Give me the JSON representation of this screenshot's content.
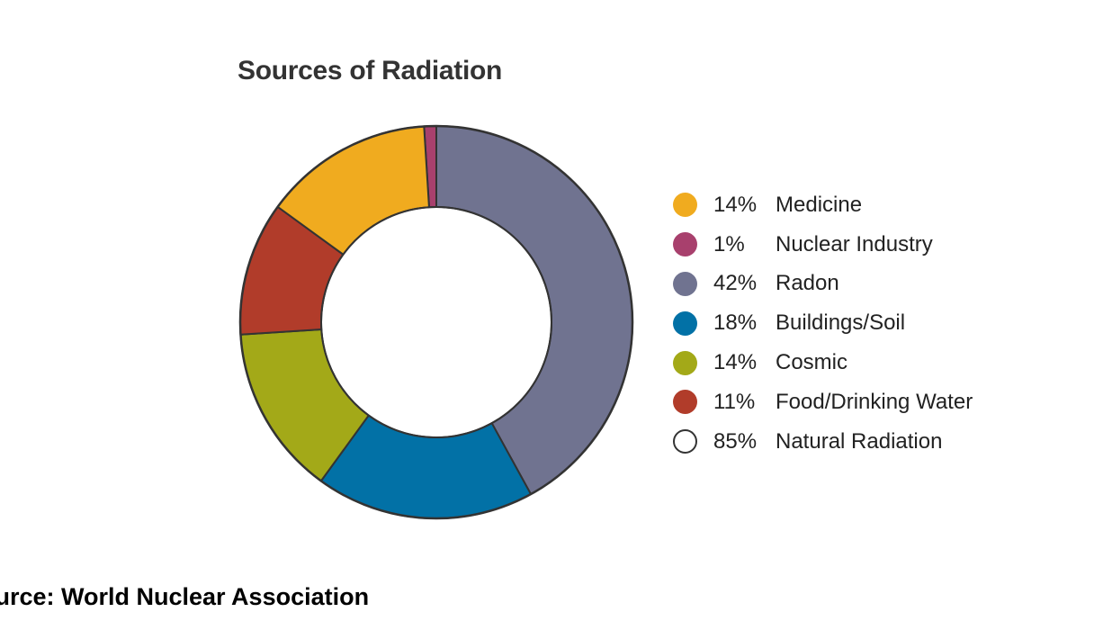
{
  "chart_data": {
    "type": "pie",
    "title": "Sources of Radiation",
    "subtitle": "",
    "slices": [
      {
        "label": "Medicine",
        "value": 14,
        "value_label": "14%",
        "color": "#f0ab1f"
      },
      {
        "label": "Nuclear Industry",
        "value": 1,
        "value_label": "1%",
        "color": "#a8406d"
      },
      {
        "label": "Radon",
        "value": 42,
        "value_label": "42%",
        "color": "#707390"
      },
      {
        "label": "Buildings/Soil",
        "value": 18,
        "value_label": "18%",
        "color": "#0271a6"
      },
      {
        "label": "Cosmic",
        "value": 14,
        "value_label": "14%",
        "color": "#a3a918"
      },
      {
        "label": "Food/Drinking Water",
        "value": 11,
        "value_label": "11%",
        "color": "#b13c2a"
      }
    ],
    "summary_entry": {
      "label": "Natural Radiation",
      "value": 85,
      "value_label": "85%",
      "color": "#ffffff"
    },
    "donut": true,
    "start_slice": "Nuclear Industry",
    "direction": "clockwise",
    "legend_position": "right"
  },
  "source": "ource: World Nuclear Association",
  "colors": {
    "outline": "#333333"
  }
}
